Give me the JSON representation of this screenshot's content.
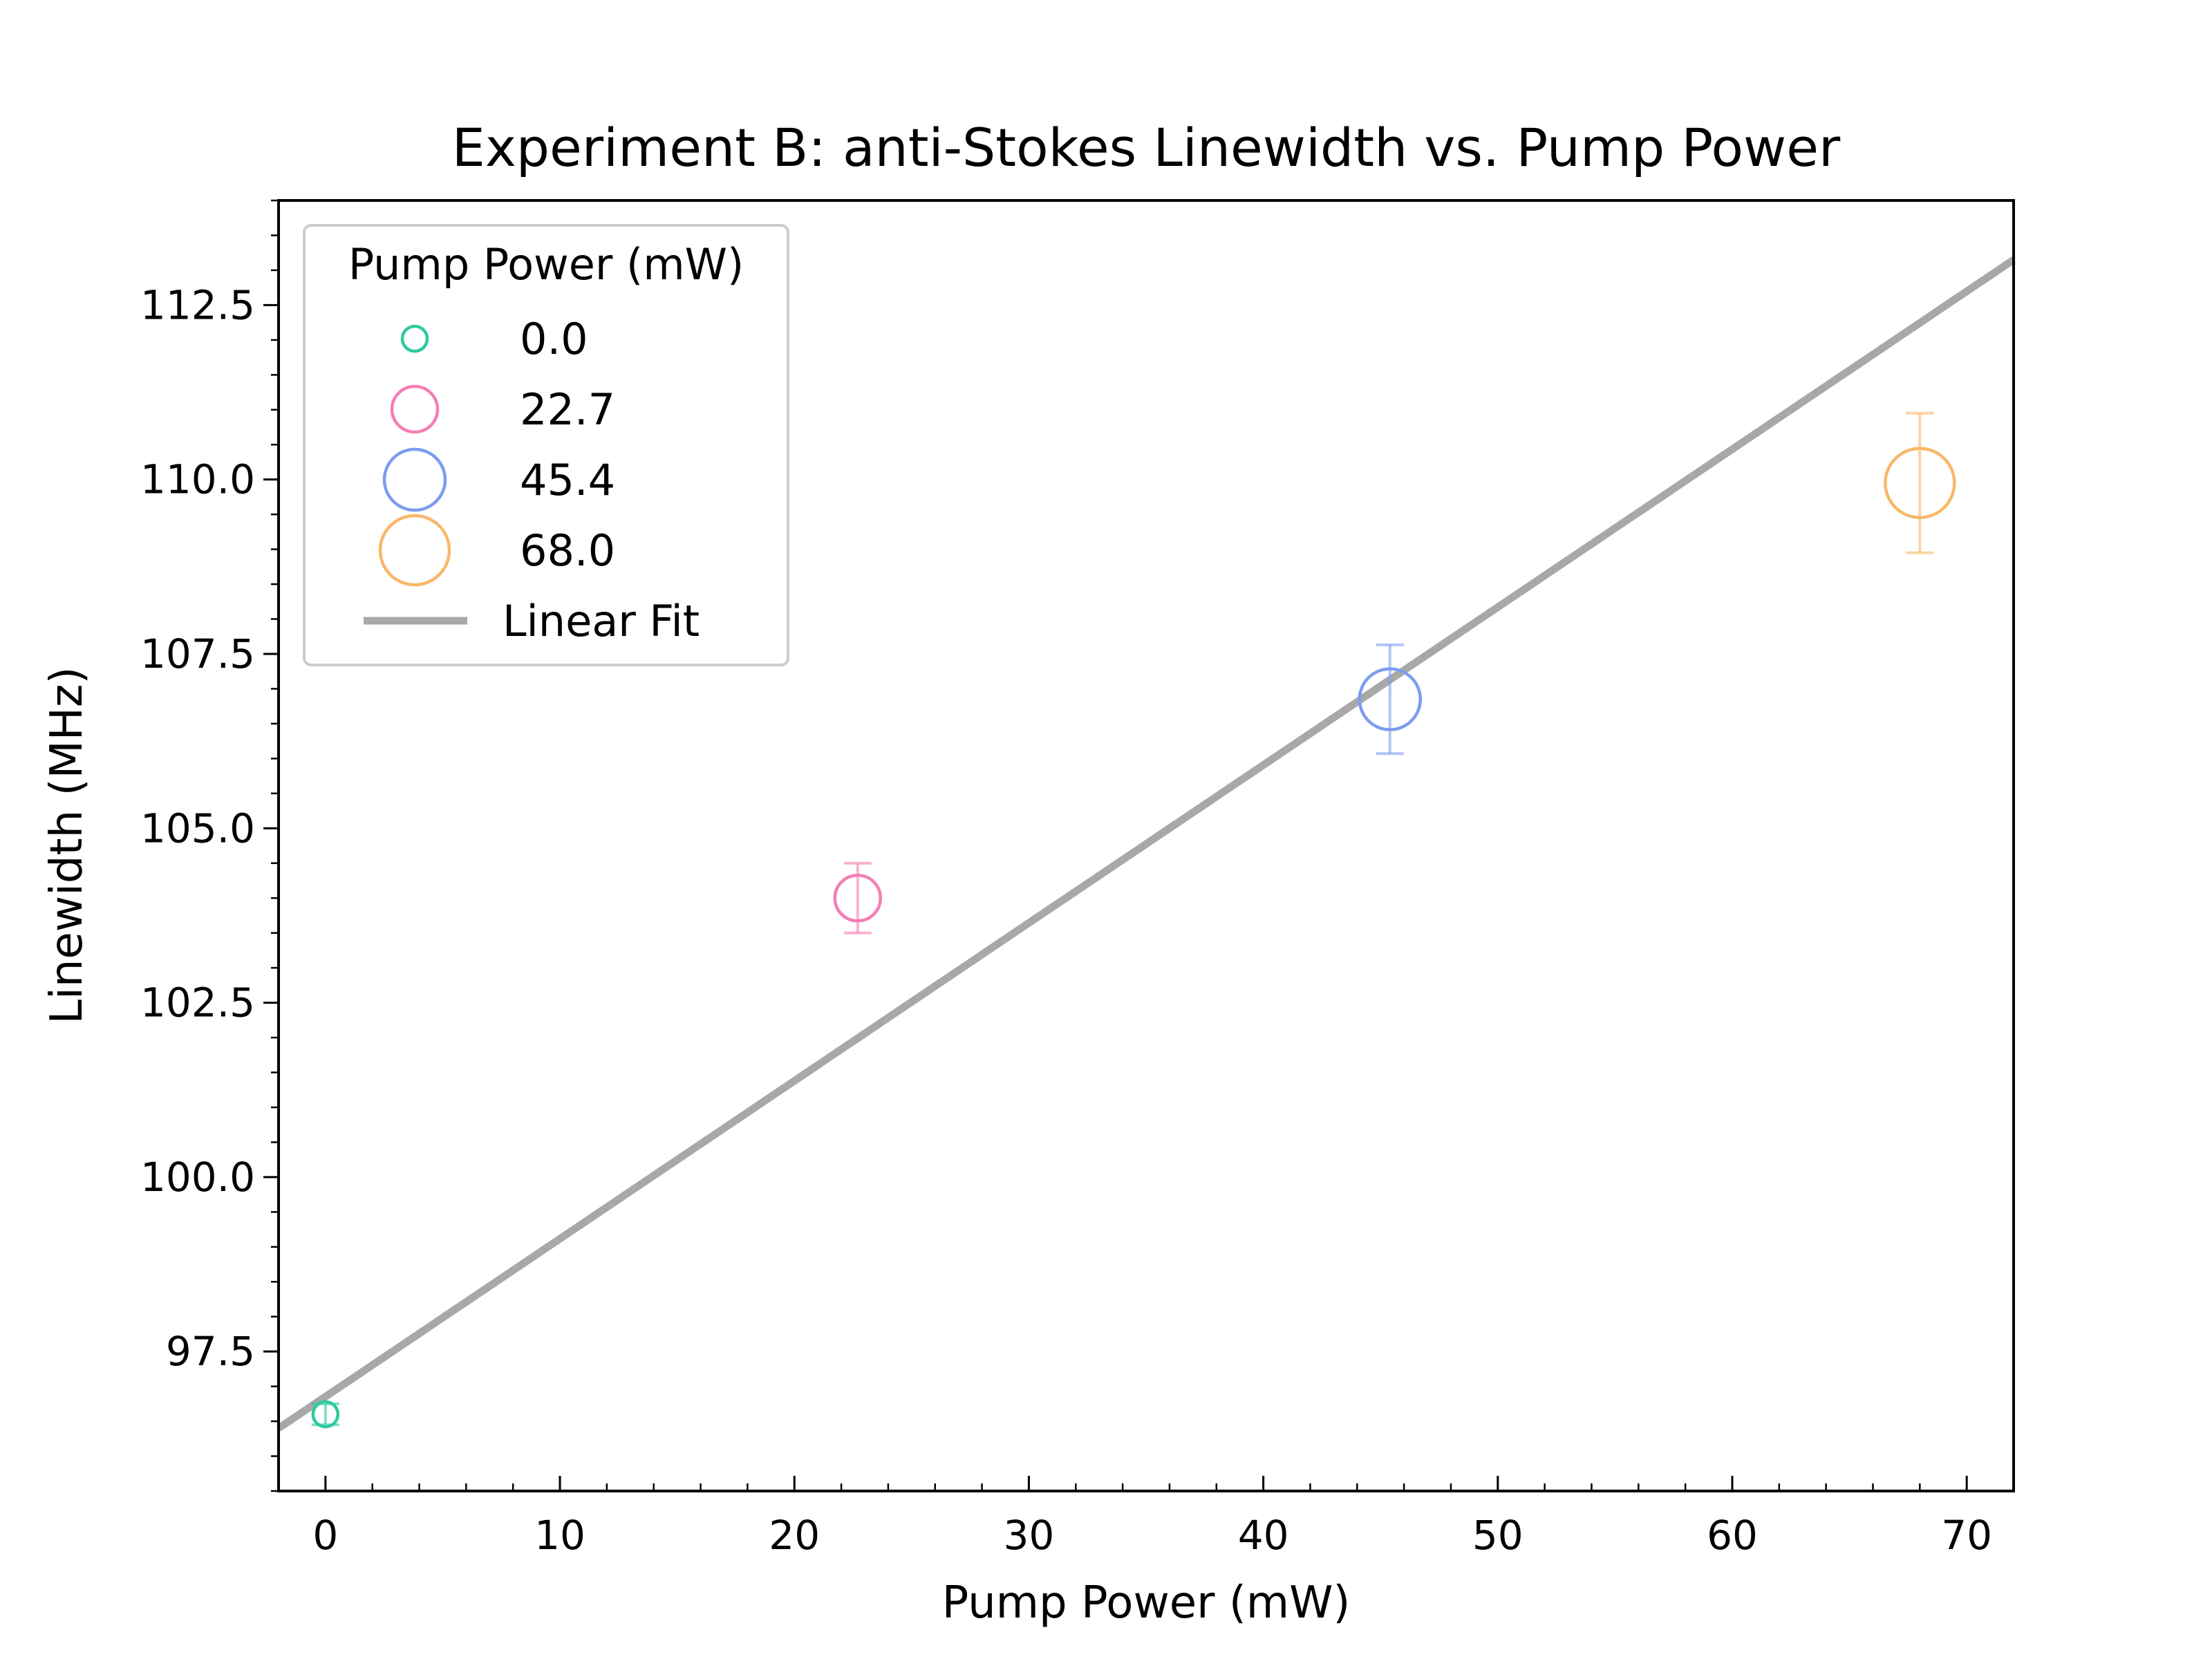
{
  "chart_data": {
    "type": "scatter",
    "title": "Experiment B: anti-Stokes Linewidth vs. Pump Power",
    "xlabel": "Pump Power (mW)",
    "ylabel": "Linewidth (MHz)",
    "xlim": [
      -2,
      72
    ],
    "ylim": [
      95.5,
      114
    ],
    "xticks": [
      0,
      10,
      20,
      30,
      40,
      50,
      60,
      70
    ],
    "xtick_labels": [
      "0",
      "10",
      "20",
      "30",
      "40",
      "50",
      "60",
      "70"
    ],
    "yticks": [
      97.5,
      100.0,
      102.5,
      105.0,
      107.5,
      110.0,
      112.5
    ],
    "ytick_labels": [
      "97.5",
      "100.0",
      "102.5",
      "105.0",
      "107.5",
      "110.0",
      "112.5"
    ],
    "grid": false,
    "legend": {
      "title": "Pump Power (mW)",
      "location": "upper-left"
    },
    "points": [
      {
        "label": "0.0",
        "x": 0.0,
        "y": 96.6,
        "yerr": 0.15,
        "color": "#2ec9a0"
      },
      {
        "label": "22.7",
        "x": 22.7,
        "y": 104.0,
        "yerr": 0.5,
        "color": "#f47eb4"
      },
      {
        "label": "45.4",
        "x": 45.4,
        "y": 106.85,
        "yerr": 0.78,
        "color": "#7b9cf0"
      },
      {
        "label": "68.0",
        "x": 68.0,
        "y": 109.95,
        "yerr": 1.0,
        "color": "#f8b86a"
      }
    ],
    "fit": {
      "label": "Linear Fit",
      "x": [
        -2,
        72
      ],
      "y": [
        96.4,
        113.15
      ],
      "color": "#a8a8a8"
    }
  }
}
